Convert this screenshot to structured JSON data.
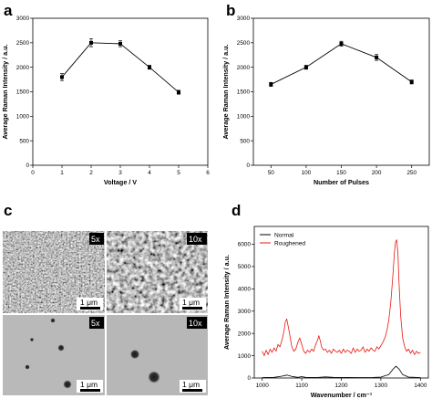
{
  "panels": {
    "a": "a",
    "b": "b",
    "c": "c",
    "d": "d"
  },
  "micrographs": [
    {
      "magnification": "5x",
      "scale_bar": "1 μm",
      "surface": "rough"
    },
    {
      "magnification": "10x",
      "scale_bar": "1 μm",
      "surface": "rough"
    },
    {
      "magnification": "5x",
      "scale_bar": "1 μm",
      "surface": "smooth"
    },
    {
      "magnification": "10x",
      "scale_bar": "1 μm",
      "surface": "smooth"
    }
  ],
  "chart_data": [
    {
      "panel": "a",
      "type": "line",
      "xlabel": "Voltage / V",
      "ylabel": "Average Raman Intensity / a.u.",
      "xlim": [
        0,
        6
      ],
      "ylim": [
        0,
        3000
      ],
      "xticks": [
        0,
        1,
        2,
        3,
        4,
        5,
        6
      ],
      "yticks": [
        0,
        500,
        1000,
        1500,
        2000,
        2500,
        3000
      ],
      "x": [
        1,
        2,
        3,
        4,
        5
      ],
      "y": [
        1800,
        2500,
        2480,
        2000,
        1490
      ],
      "yerr": [
        70,
        80,
        60,
        40,
        40
      ],
      "marker": "square",
      "color": "#000000"
    },
    {
      "panel": "b",
      "type": "line",
      "xlabel": "Number of Pulses",
      "ylabel": "Average Raman Intensity / a.u.",
      "xlim": [
        25,
        275
      ],
      "ylim": [
        0,
        3000
      ],
      "xticks": [
        50,
        100,
        150,
        200,
        250
      ],
      "yticks": [
        0,
        500,
        1000,
        1500,
        2000,
        2500,
        3000
      ],
      "x": [
        50,
        100,
        150,
        200,
        250
      ],
      "y": [
        1650,
        2000,
        2480,
        2200,
        1700
      ],
      "yerr": [
        40,
        40,
        50,
        60,
        40
      ],
      "marker": "square",
      "color": "#000000"
    },
    {
      "panel": "d",
      "type": "line",
      "xlabel": "Wavenumber / cm⁻¹",
      "ylabel": "Average Raman Intensity / a.u.",
      "xlim": [
        980,
        1420
      ],
      "ylim": [
        0,
        6800
      ],
      "xticks": [
        1000,
        1100,
        1200,
        1300,
        1400
      ],
      "yticks": [
        0,
        1000,
        2000,
        3000,
        4000,
        5000,
        6000
      ],
      "legend_position": "top-left",
      "series": [
        {
          "name": "Normal",
          "color": "#000000",
          "x": [
            1000,
            1030,
            1050,
            1062,
            1075,
            1090,
            1100,
            1110,
            1140,
            1160,
            1180,
            1200,
            1240,
            1280,
            1300,
            1320,
            1330,
            1338,
            1346,
            1355,
            1370,
            1400
          ],
          "y": [
            20,
            30,
            80,
            130,
            70,
            30,
            60,
            30,
            25,
            50,
            30,
            25,
            20,
            25,
            40,
            150,
            380,
            530,
            400,
            150,
            40,
            20
          ]
        },
        {
          "name": "Roughened",
          "color": "#e8170f",
          "x": [
            1000,
            1005,
            1010,
            1015,
            1020,
            1025,
            1030,
            1035,
            1040,
            1045,
            1050,
            1055,
            1058,
            1062,
            1066,
            1070,
            1075,
            1080,
            1085,
            1090,
            1095,
            1100,
            1105,
            1110,
            1115,
            1120,
            1125,
            1130,
            1135,
            1140,
            1143,
            1147,
            1150,
            1155,
            1160,
            1165,
            1170,
            1175,
            1180,
            1185,
            1190,
            1195,
            1200,
            1205,
            1210,
            1215,
            1220,
            1225,
            1230,
            1235,
            1240,
            1245,
            1250,
            1255,
            1260,
            1265,
            1270,
            1275,
            1280,
            1285,
            1290,
            1295,
            1300,
            1305,
            1310,
            1315,
            1320,
            1325,
            1330,
            1334,
            1337,
            1340,
            1343,
            1346,
            1350,
            1355,
            1360,
            1365,
            1370,
            1375,
            1380,
            1385,
            1390,
            1395,
            1400
          ],
          "y": [
            1200,
            1000,
            1250,
            1050,
            1300,
            1150,
            1350,
            1200,
            1500,
            1400,
            1700,
            2100,
            2500,
            2650,
            2300,
            1900,
            1400,
            1200,
            1300,
            1600,
            1800,
            1500,
            1200,
            1100,
            1250,
            1150,
            1300,
            1200,
            1500,
            1700,
            1900,
            1650,
            1400,
            1250,
            1300,
            1150,
            1250,
            1100,
            1300,
            1200,
            1150,
            1250,
            1100,
            1300,
            1150,
            1250,
            1200,
            1100,
            1350,
            1150,
            1300,
            1200,
            1250,
            1400,
            1150,
            1300,
            1200,
            1350,
            1250,
            1200,
            1400,
            1300,
            1450,
            1600,
            1800,
            2100,
            2600,
            3400,
            4500,
            5600,
            6100,
            6200,
            5600,
            4200,
            2800,
            1800,
            1400,
            1200,
            1300,
            1100,
            1250,
            1050,
            1200,
            1100,
            1150
          ]
        }
      ]
    }
  ]
}
